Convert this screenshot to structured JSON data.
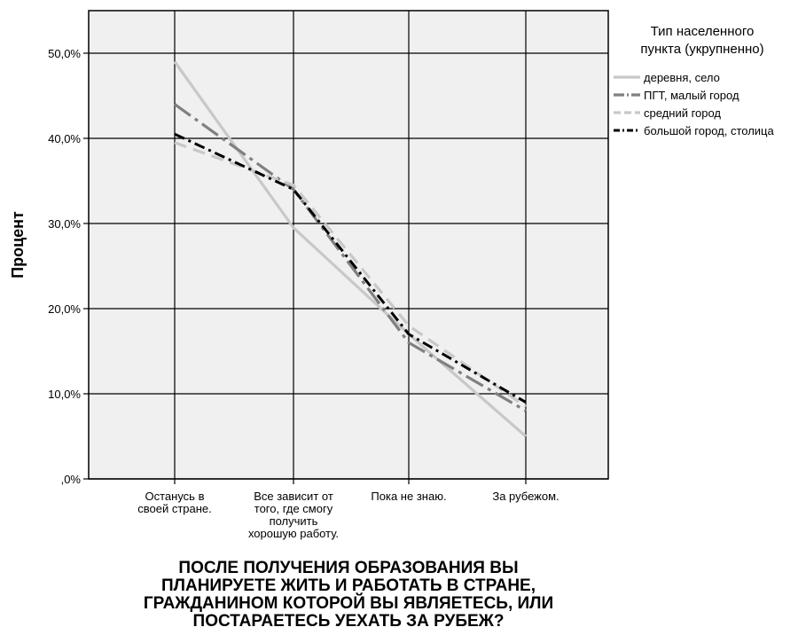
{
  "chart_data": {
    "type": "line",
    "ylabel": "Процент",
    "xlabel_lines": [
      "ПОСЛЕ ПОЛУЧЕНИЯ ОБРАЗОВАНИЯ ВЫ",
      "ПЛАНИРУЕТЕ ЖИТЬ И РАБОТАТЬ В СТРАНЕ,",
      "ГРАЖДАНИНОМ КОТОРОЙ ВЫ ЯВЛЯЕТЕСЬ, ИЛИ",
      "ПОСТАРАЕТЕСЬ УЕХАТЬ ЗА РУБЕЖ?"
    ],
    "categories": [
      [
        "Останусь в",
        "своей стране."
      ],
      [
        "Все зависит от",
        "того, где смогу",
        "получить",
        "хорошую работу."
      ],
      [
        "Пока не знаю."
      ],
      [
        "За рубежом."
      ]
    ],
    "ylim": [
      0,
      55
    ],
    "yticks": [
      0,
      10,
      20,
      30,
      40,
      50
    ],
    "ytick_labels": [
      ",0%",
      "10,0%",
      "20,0%",
      "30,0%",
      "40,0%",
      "50,0%"
    ],
    "grid": true,
    "legend": {
      "title_lines": [
        "Тип населенного",
        "пункта (укрупненно)"
      ],
      "placement": "right"
    },
    "series": [
      {
        "name": "деревня, село",
        "values": [
          49,
          29.5,
          17,
          5
        ],
        "color": "#c8c8c8",
        "dash": ""
      },
      {
        "name": "ПГТ, малый город",
        "values": [
          44,
          34,
          16,
          8
        ],
        "color": "#808080",
        "dash": "22 6 4 6"
      },
      {
        "name": "средний город",
        "values": [
          39.5,
          34.5,
          18,
          8.5
        ],
        "color": "#c8c8c8",
        "dash": "14 8"
      },
      {
        "name": "большой город, столица",
        "values": [
          40.5,
          34,
          17,
          9
        ],
        "color": "#000000",
        "dash": "12 5 3 5"
      }
    ]
  }
}
